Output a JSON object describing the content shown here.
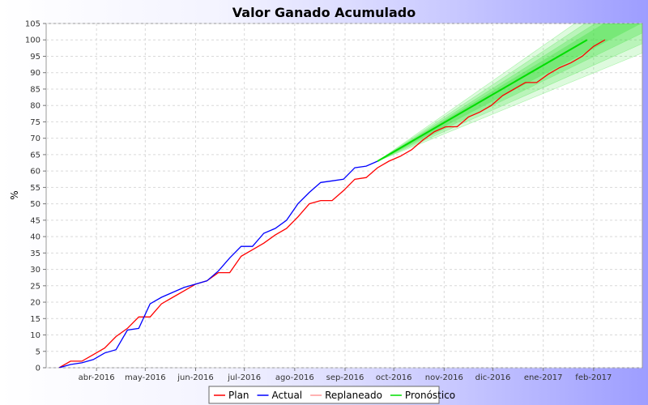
{
  "chart_data": {
    "type": "line",
    "title": "Valor Ganado Acumulado",
    "xlabel": "",
    "ylabel": "%",
    "ylim": [
      0,
      105
    ],
    "yticks": [
      0,
      5,
      10,
      15,
      20,
      25,
      30,
      35,
      40,
      45,
      50,
      55,
      60,
      65,
      70,
      75,
      80,
      85,
      90,
      95,
      100,
      105
    ],
    "xlim": [
      "2016-03-01",
      "2017-03-03"
    ],
    "xticks": [
      {
        "date": "2016-04-01",
        "label": "abr-2016"
      },
      {
        "date": "2016-05-01",
        "label": "may-2016"
      },
      {
        "date": "2016-06-01",
        "label": "jun-2016"
      },
      {
        "date": "2016-07-01",
        "label": "jul-2016"
      },
      {
        "date": "2016-08-01",
        "label": "ago-2016"
      },
      {
        "date": "2016-09-01",
        "label": "sep-2016"
      },
      {
        "date": "2016-10-01",
        "label": "oct-2016"
      },
      {
        "date": "2016-11-01",
        "label": "nov-2016"
      },
      {
        "date": "2016-12-01",
        "label": "dic-2016"
      },
      {
        "date": "2017-01-01",
        "label": "ene-2017"
      },
      {
        "date": "2017-02-01",
        "label": "feb-2017"
      }
    ],
    "grid": true,
    "legend_position": "bottom",
    "series": [
      {
        "name": "Plan",
        "color": "#ff0000",
        "points": [
          [
            "2016-03-09",
            0
          ],
          [
            "2016-03-16",
            2
          ],
          [
            "2016-03-23",
            2
          ],
          [
            "2016-03-30",
            4
          ],
          [
            "2016-04-06",
            6
          ],
          [
            "2016-04-13",
            9.5
          ],
          [
            "2016-04-20",
            12
          ],
          [
            "2016-04-27",
            15.5
          ],
          [
            "2016-05-04",
            15.5
          ],
          [
            "2016-05-11",
            19.5
          ],
          [
            "2016-05-18",
            21.5
          ],
          [
            "2016-05-25",
            23.5
          ],
          [
            "2016-06-01",
            25.5
          ],
          [
            "2016-06-08",
            26.5
          ],
          [
            "2016-06-15",
            29
          ],
          [
            "2016-06-22",
            29
          ],
          [
            "2016-06-29",
            34
          ],
          [
            "2016-07-06",
            36
          ],
          [
            "2016-07-13",
            38
          ],
          [
            "2016-07-20",
            40.5
          ],
          [
            "2016-07-27",
            42.5
          ],
          [
            "2016-08-03",
            46
          ],
          [
            "2016-08-10",
            50
          ],
          [
            "2016-08-17",
            51
          ],
          [
            "2016-08-24",
            51
          ],
          [
            "2016-08-31",
            54
          ],
          [
            "2016-09-07",
            57.5
          ],
          [
            "2016-09-14",
            58
          ],
          [
            "2016-09-21",
            61
          ],
          [
            "2016-09-28",
            63
          ],
          [
            "2016-10-05",
            64.5
          ],
          [
            "2016-10-12",
            66.5
          ],
          [
            "2016-10-19",
            69.5
          ],
          [
            "2016-10-26",
            72
          ],
          [
            "2016-11-02",
            73.5
          ],
          [
            "2016-11-09",
            73.5
          ],
          [
            "2016-11-16",
            76.5
          ],
          [
            "2016-11-23",
            78
          ],
          [
            "2016-11-30",
            80
          ],
          [
            "2016-12-07",
            83
          ],
          [
            "2016-12-14",
            85
          ],
          [
            "2016-12-21",
            87
          ],
          [
            "2016-12-28",
            87
          ],
          [
            "2017-01-04",
            89.5
          ],
          [
            "2017-01-11",
            91.5
          ],
          [
            "2017-01-18",
            93
          ],
          [
            "2017-01-25",
            95
          ],
          [
            "2017-02-01",
            98
          ],
          [
            "2017-02-08",
            100
          ]
        ]
      },
      {
        "name": "Actual",
        "color": "#0000ff",
        "points": [
          [
            "2016-03-09",
            0
          ],
          [
            "2016-03-16",
            1
          ],
          [
            "2016-03-23",
            1.5
          ],
          [
            "2016-03-30",
            2.5
          ],
          [
            "2016-04-06",
            4.5
          ],
          [
            "2016-04-13",
            5.5
          ],
          [
            "2016-04-20",
            11.5
          ],
          [
            "2016-04-27",
            12
          ],
          [
            "2016-05-04",
            19.5
          ],
          [
            "2016-05-11",
            21.5
          ],
          [
            "2016-05-18",
            23
          ],
          [
            "2016-05-25",
            24.5
          ],
          [
            "2016-06-01",
            25.5
          ],
          [
            "2016-06-08",
            26.5
          ],
          [
            "2016-06-15",
            29.5
          ],
          [
            "2016-06-22",
            33.5
          ],
          [
            "2016-06-29",
            37
          ],
          [
            "2016-07-06",
            37
          ],
          [
            "2016-07-13",
            41
          ],
          [
            "2016-07-20",
            42.5
          ],
          [
            "2016-07-27",
            45
          ],
          [
            "2016-08-03",
            50
          ],
          [
            "2016-08-10",
            53.5
          ],
          [
            "2016-08-17",
            56.5
          ],
          [
            "2016-08-24",
            57
          ],
          [
            "2016-08-31",
            57.5
          ],
          [
            "2016-09-07",
            61
          ],
          [
            "2016-09-14",
            61.5
          ],
          [
            "2016-09-21",
            63
          ]
        ]
      },
      {
        "name": "Replaneado",
        "color": "#ff9999",
        "points": []
      },
      {
        "name": "Pronóstico",
        "color": "#00dd00",
        "points": [
          [
            "2016-09-21",
            63
          ],
          [
            "2017-01-28",
            100
          ]
        ],
        "band_upper": [
          [
            "2016-09-21",
            63
          ],
          [
            "2017-01-06",
            100
          ]
        ],
        "band_lower": [
          [
            "2016-09-21",
            63
          ],
          [
            "2017-03-03",
            96
          ]
        ]
      }
    ]
  }
}
